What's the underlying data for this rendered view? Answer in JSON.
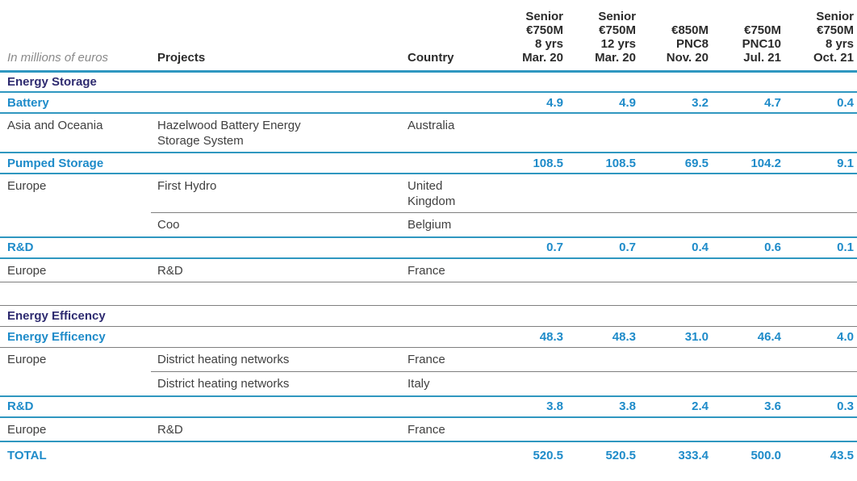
{
  "table": {
    "meta_label": "In millions of euros",
    "columns": {
      "projects": "Projects",
      "country": "Country",
      "tranches": [
        "Senior\n€750M\n8 yrs\nMar. 20",
        "Senior\n€750M\n12 yrs\nMar. 20",
        "€850M\nPNC8\nNov. 20",
        "€750M\nPNC10\nJul. 21",
        "Senior\n€750M\n8 yrs\nOct. 21"
      ]
    },
    "rows": [
      {
        "type": "section",
        "label": "Energy Storage",
        "border": "blue"
      },
      {
        "type": "subtotal",
        "label": "Battery",
        "values": [
          "4.9",
          "4.9",
          "3.2",
          "4.7",
          "0.4"
        ],
        "border": "blue"
      },
      {
        "type": "detail",
        "region": "Asia and Oceania",
        "project": "Hazelwood Battery Energy Storage System",
        "country": "Australia",
        "border": "blue"
      },
      {
        "type": "subtotal",
        "label": "Pumped Storage",
        "values": [
          "108.5",
          "108.5",
          "69.5",
          "104.2",
          "9.1"
        ],
        "border": "blue"
      },
      {
        "type": "detail",
        "region": "Europe",
        "project": "First Hydro",
        "country": "United Kingdom",
        "border": "gray",
        "partial": true
      },
      {
        "type": "detail",
        "region": "",
        "project": "Coo",
        "country": "Belgium",
        "border": "blue"
      },
      {
        "type": "subtotal",
        "label": "R&D",
        "values": [
          "0.7",
          "0.7",
          "0.4",
          "0.6",
          "0.1"
        ],
        "border": "blue"
      },
      {
        "type": "detail",
        "region": "Europe",
        "project": "R&D",
        "country": "France",
        "border": "gray"
      },
      {
        "type": "spacer",
        "border": "gray"
      },
      {
        "type": "section",
        "label": "Energy Efficency",
        "border": "gray"
      },
      {
        "type": "subtotal",
        "label": "Energy Efficency",
        "values": [
          "48.3",
          "48.3",
          "31.0",
          "46.4",
          "4.0"
        ],
        "border": "gray"
      },
      {
        "type": "detail",
        "region": "Europe",
        "project": "District heating networks",
        "country": "France",
        "border": "gray",
        "partial": true
      },
      {
        "type": "detail",
        "region": "",
        "project": "District heating networks",
        "country": "Italy",
        "border": "blue"
      },
      {
        "type": "subtotal",
        "label": "R&D",
        "values": [
          "3.8",
          "3.8",
          "2.4",
          "3.6",
          "0.3"
        ],
        "border": "blue"
      },
      {
        "type": "detail",
        "region": "Europe",
        "project": "R&D",
        "country": "France",
        "border": "blue"
      },
      {
        "type": "total",
        "label": "TOTAL",
        "values": [
          "520.5",
          "520.5",
          "333.4",
          "500.0",
          "43.5"
        ],
        "border": "none"
      }
    ]
  },
  "colors": {
    "accent_blue": "#1e8bc9",
    "section_navy": "#2e2b70",
    "body_text": "#3f3f3f",
    "muted_gray": "#8a8a8a",
    "rule_blue": "#2f97c0",
    "rule_gray": "#7f7f7f"
  }
}
